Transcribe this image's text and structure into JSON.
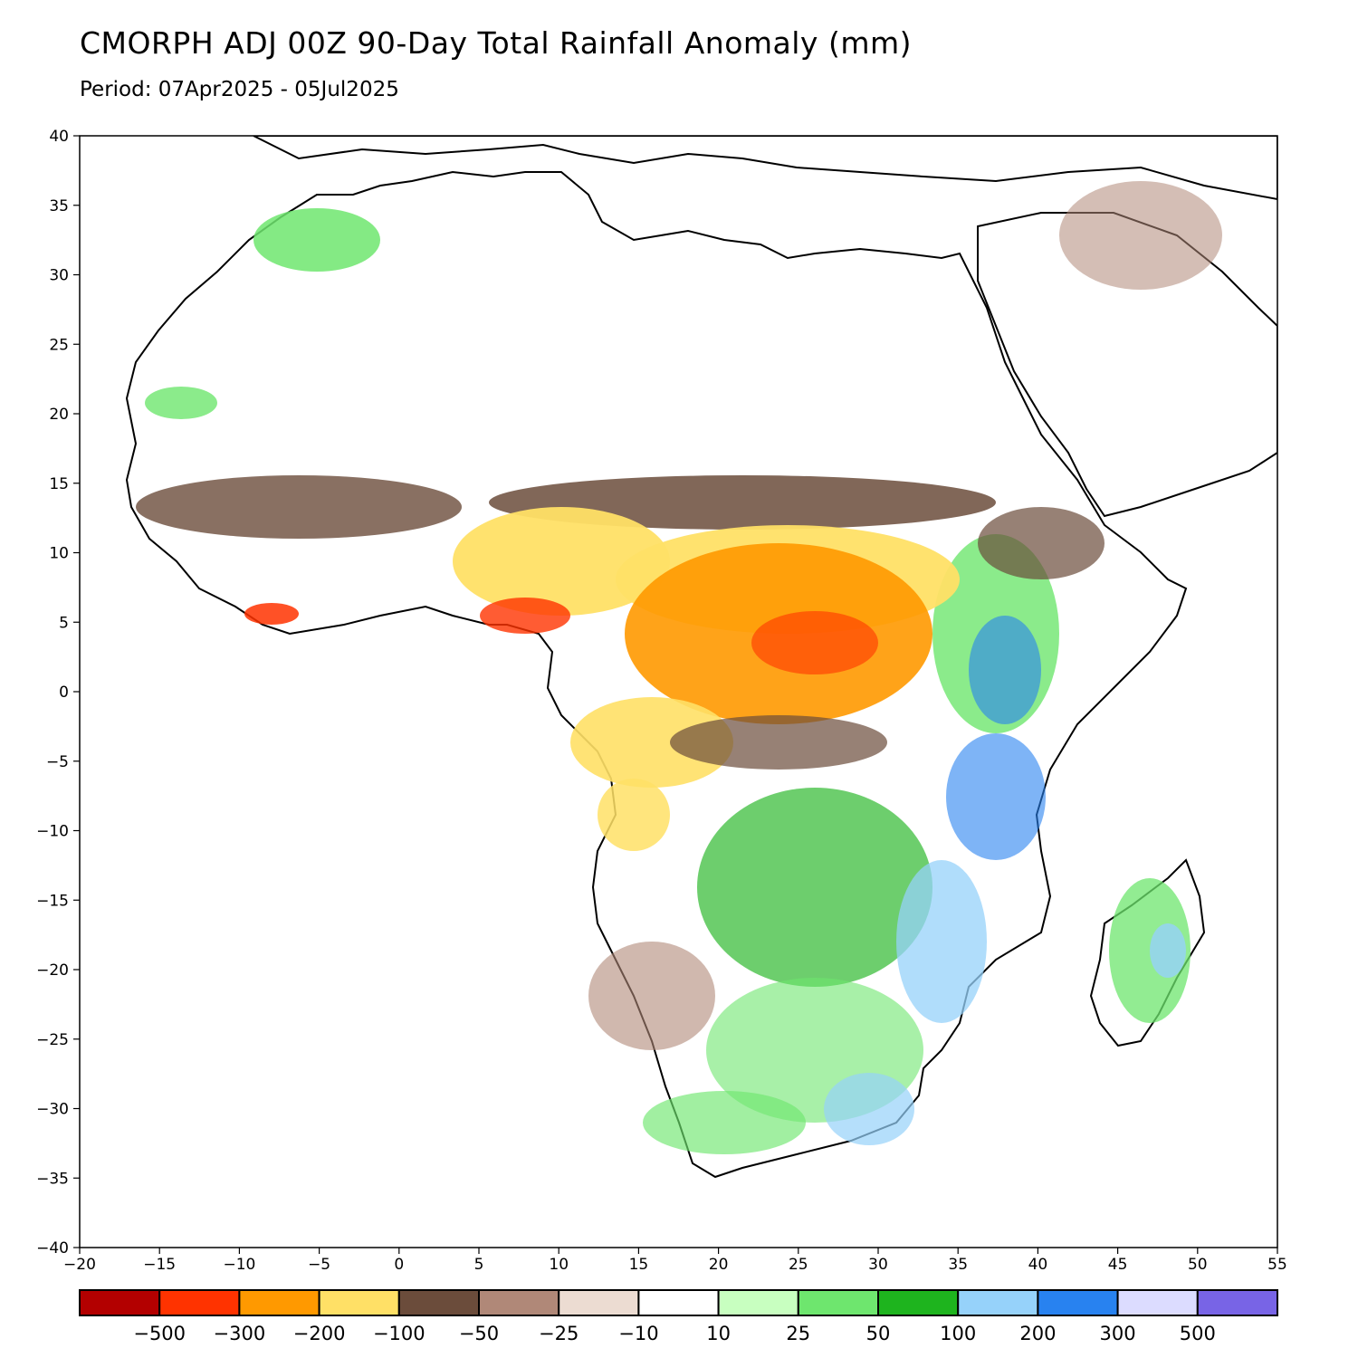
{
  "title": "CMORPH ADJ 00Z 90-Day Total Rainfall Anomaly (mm)",
  "subtitle": "Period: 07Apr2025 - 05Jul2025",
  "map": {
    "region": "Africa",
    "lon_range": [
      -20,
      55
    ],
    "lat_range": [
      -40,
      40
    ],
    "lon_ticks": [
      "-20",
      "-15",
      "-10",
      "-5",
      "0",
      "5",
      "10",
      "15",
      "20",
      "25",
      "30",
      "35",
      "40",
      "45",
      "50",
      "55"
    ],
    "lat_ticks": [
      "40",
      "35",
      "30",
      "25",
      "20",
      "15",
      "10",
      "5",
      "0",
      "-5",
      "-10",
      "-15",
      "-20",
      "-25",
      "-30",
      "-35",
      "-40"
    ]
  },
  "colorbar": {
    "colors": [
      "#b30000",
      "#ff3300",
      "#ff9900",
      "#ffe066",
      "#6b4c3b",
      "#b08878",
      "#ecdcd2",
      "#ffffff",
      "#c8ffc0",
      "#6ee66e",
      "#1eb41e",
      "#96d2fa",
      "#2882f0",
      "#dcdcff",
      "#7864e6"
    ],
    "labels": [
      "-500",
      "-300",
      "-200",
      "-100",
      "-50",
      "-25",
      "-10",
      "10",
      "25",
      "50",
      "100",
      "200",
      "300",
      "500"
    ]
  }
}
